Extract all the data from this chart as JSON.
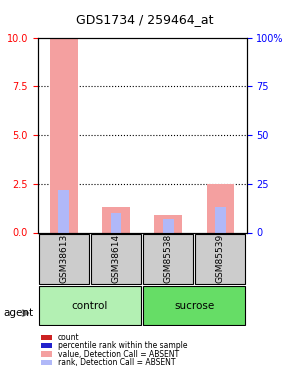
{
  "title": "GDS1734 / 259464_at",
  "samples": [
    "GSM38613",
    "GSM38614",
    "GSM85538",
    "GSM85539"
  ],
  "groups": [
    {
      "name": "control",
      "samples": [
        "GSM38613",
        "GSM38614"
      ],
      "color": "#b3f0b3"
    },
    {
      "name": "sucrose",
      "samples": [
        "GSM85538",
        "GSM85539"
      ],
      "color": "#66dd66"
    }
  ],
  "absent_value_bars": [
    9.9,
    1.3,
    0.9,
    2.5
  ],
  "absent_rank_bars": [
    2.2,
    1.0,
    0.7,
    1.3
  ],
  "present_value_bars": [
    0,
    0,
    0,
    0
  ],
  "present_rank_bars": [
    0,
    0,
    0,
    0
  ],
  "ylim_left": [
    0,
    10
  ],
  "ylim_right": [
    0,
    100
  ],
  "yticks_left": [
    0,
    2.5,
    5,
    7.5,
    10
  ],
  "yticks_right": [
    0,
    25,
    50,
    75,
    100
  ],
  "ytick_labels_right": [
    "0",
    "25",
    "50",
    "75",
    "100%"
  ],
  "color_absent_value": "#f4a0a0",
  "color_absent_rank": "#b0b8f8",
  "color_present_value": "#cc2222",
  "color_present_rank": "#2222cc",
  "grid_color": "black",
  "sample_box_color": "#cccccc",
  "legend_items": [
    {
      "label": "count",
      "color": "#cc2222",
      "style": "square"
    },
    {
      "label": "percentile rank within the sample",
      "color": "#2222cc",
      "style": "square"
    },
    {
      "label": "value, Detection Call = ABSENT",
      "color": "#f4a0a0",
      "style": "square"
    },
    {
      "label": "rank, Detection Call = ABSENT",
      "color": "#b0b8f8",
      "style": "square"
    }
  ],
  "agent_label": "agent",
  "bar_width": 0.35
}
